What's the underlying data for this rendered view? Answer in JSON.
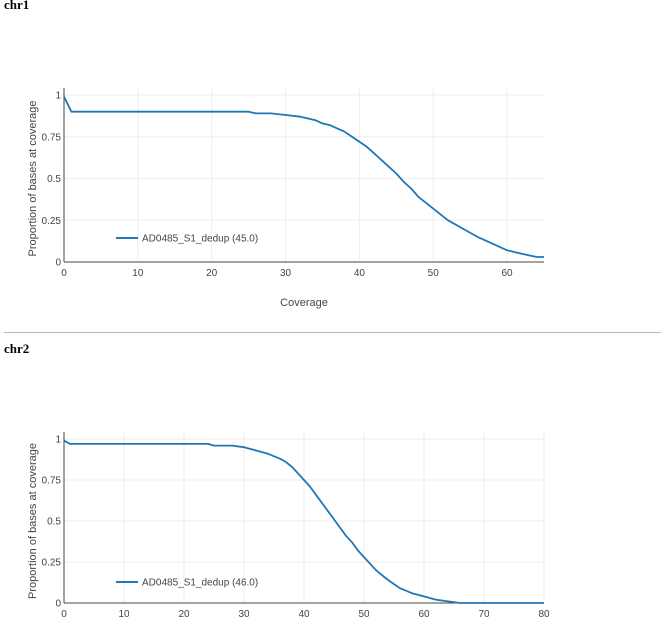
{
  "sections": [
    {
      "title": "chr1"
    },
    {
      "title": "chr2"
    }
  ],
  "colors": {
    "line": "#1f77b4",
    "grid": "#eeeeee",
    "axis": "#444444"
  },
  "chart_data": [
    {
      "type": "line",
      "title": "chr1",
      "xlabel": "Coverage",
      "ylabel": "Proportion of bases at coverage",
      "xlim": [
        0,
        65
      ],
      "ylim": [
        0,
        1
      ],
      "xticks": [
        0,
        10,
        20,
        30,
        40,
        50,
        60
      ],
      "yticks": [
        0,
        0.25,
        0.5,
        0.75,
        1
      ],
      "ytick_labels": [
        "0",
        "0.25",
        "0.5",
        "0.75",
        "1"
      ],
      "legend_position": "lower-left",
      "grid": true,
      "series": [
        {
          "name": "AD0485_S1_dedup (45.0)",
          "x": [
            0,
            1,
            5,
            10,
            15,
            20,
            25,
            26,
            28,
            30,
            32,
            34,
            35,
            36,
            37,
            38,
            39,
            40,
            41,
            42,
            43,
            44,
            45,
            46,
            47,
            48,
            50,
            52,
            54,
            56,
            58,
            60,
            62,
            64,
            65
          ],
          "y": [
            0.99,
            0.9,
            0.9,
            0.9,
            0.9,
            0.9,
            0.9,
            0.89,
            0.89,
            0.88,
            0.87,
            0.85,
            0.83,
            0.82,
            0.8,
            0.78,
            0.75,
            0.72,
            0.69,
            0.65,
            0.61,
            0.57,
            0.53,
            0.48,
            0.44,
            0.39,
            0.32,
            0.25,
            0.2,
            0.15,
            0.11,
            0.07,
            0.05,
            0.03,
            0.03
          ]
        }
      ]
    },
    {
      "type": "line",
      "title": "chr2",
      "xlabel": "",
      "ylabel": "Proportion of bases at coverage",
      "xlim": [
        0,
        80
      ],
      "ylim": [
        0,
        1
      ],
      "xticks": [
        0,
        10,
        20,
        30,
        40,
        50,
        60,
        70,
        80
      ],
      "yticks": [
        0,
        0.25,
        0.5,
        0.75,
        1
      ],
      "ytick_labels": [
        "0",
        "0.25",
        "0.5",
        "0.75",
        "1"
      ],
      "legend_position": "lower-left",
      "grid": true,
      "series": [
        {
          "name": "AD0485_S1_dedup (46.0)",
          "x": [
            0,
            1,
            5,
            10,
            15,
            20,
            24,
            25,
            28,
            30,
            32,
            34,
            36,
            37,
            38,
            39,
            40,
            41,
            42,
            43,
            44,
            45,
            46,
            47,
            48,
            49,
            50,
            52,
            54,
            56,
            58,
            60,
            62,
            64,
            66,
            67,
            70,
            75,
            80
          ],
          "y": [
            0.99,
            0.97,
            0.97,
            0.97,
            0.97,
            0.97,
            0.97,
            0.96,
            0.96,
            0.95,
            0.93,
            0.91,
            0.88,
            0.86,
            0.83,
            0.79,
            0.75,
            0.71,
            0.66,
            0.61,
            0.56,
            0.51,
            0.46,
            0.41,
            0.37,
            0.32,
            0.28,
            0.2,
            0.14,
            0.09,
            0.06,
            0.04,
            0.02,
            0.01,
            0.0,
            0.0,
            0.0,
            0.0,
            0.0
          ]
        }
      ]
    }
  ]
}
